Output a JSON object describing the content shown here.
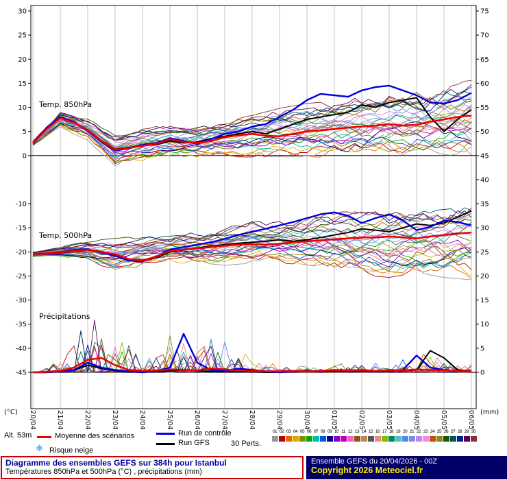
{
  "chart_data": {
    "type": "line",
    "title": "Diagramme des ensembles GEFS sur 384h pour Istanbul",
    "subtitle": "Températures 850hPa et 500hPa (°C) , précipitations (mm)",
    "x": {
      "dates": [
        "20/04",
        "21/04",
        "22/04",
        "23/04",
        "24/04",
        "25/04",
        "26/04",
        "27/04",
        "28/04",
        "29/04",
        "30/04",
        "01/05",
        "02/05",
        "03/05",
        "04/05",
        "05/05",
        "06/05"
      ],
      "hours_step_between_points": 12,
      "total_hours": 384
    },
    "left_axis": {
      "unit": "(°C)",
      "ticks": [
        30,
        25,
        20,
        15,
        10,
        5,
        0,
        -10,
        -15,
        -20,
        -25,
        -30,
        -35,
        -40,
        -45
      ]
    },
    "right_axis": {
      "unit": "(mm)",
      "ticks": [
        75,
        70,
        65,
        60,
        55,
        50,
        45,
        40,
        35,
        30,
        25,
        20,
        15,
        10,
        5,
        0
      ]
    },
    "series_styles": {
      "mean": {
        "label": "Moyenne des scénarios",
        "color": "#ee0000"
      },
      "control": {
        "label": "Run de contrôle",
        "color": "#0000dd"
      },
      "gfs": {
        "label": "Run GFS",
        "color": "#000000"
      }
    },
    "panels": [
      {
        "id": "t850",
        "label": "Temp. 850hPa",
        "unit": "°C",
        "mean": [
          2.5,
          5.5,
          7.8,
          6.8,
          5.2,
          3.0,
          1.2,
          1.6,
          2.0,
          2.4,
          3.4,
          2.8,
          2.6,
          3.0,
          3.8,
          4.2,
          4.5,
          4.1,
          4.0,
          4.5,
          5.0,
          5.2,
          5.5,
          5.8,
          6.0,
          6.2,
          6.5,
          6.2,
          6.4,
          7.0,
          7.5,
          8.0,
          8.3
        ],
        "control": [
          2.5,
          5.8,
          8.0,
          7.0,
          5.0,
          2.8,
          1.0,
          1.5,
          2.2,
          2.6,
          3.6,
          3.0,
          2.4,
          3.4,
          4.5,
          5.0,
          6.0,
          6.5,
          8.0,
          9.5,
          11.5,
          12.8,
          12.5,
          12.2,
          13.5,
          14.2,
          14.5,
          13.5,
          12.5,
          11.0,
          10.8,
          11.5,
          13.0
        ],
        "gfs": [
          2.5,
          5.6,
          7.8,
          6.9,
          5.3,
          3.1,
          1.3,
          1.7,
          2.1,
          2.2,
          3.0,
          2.6,
          2.8,
          3.5,
          4.0,
          4.5,
          5.0,
          4.5,
          5.5,
          6.5,
          7.5,
          8.0,
          8.5,
          9.0,
          10.5,
          10.0,
          11.0,
          11.5,
          12.0,
          8.0,
          5.0,
          7.5,
          9.5
        ],
        "envelope_low_daily": [
          2.0,
          6.0,
          3.5,
          -2.0,
          -1.0,
          0.0,
          -0.5,
          0.0,
          0.0,
          0.0,
          0.0,
          0.0,
          -0.5,
          0.0,
          0.0,
          0.5,
          0.0
        ],
        "envelope_high_daily": [
          3.0,
          9.0,
          7.5,
          4.0,
          5.5,
          6.0,
          6.5,
          7.0,
          8.0,
          9.5,
          10.5,
          11.0,
          12.0,
          13.0,
          13.0,
          14.0,
          15.5
        ]
      },
      {
        "id": "t500",
        "label": "Temp. 500hPa",
        "unit": "°C",
        "mean": [
          -20.5,
          -20.3,
          -20.0,
          -19.8,
          -19.5,
          -20.0,
          -20.5,
          -21.5,
          -21.8,
          -21.0,
          -19.8,
          -19.5,
          -19.3,
          -19.0,
          -18.7,
          -18.5,
          -18.4,
          -18.5,
          -18.3,
          -18.0,
          -17.8,
          -17.6,
          -17.4,
          -17.2,
          -17.0,
          -17.0,
          -16.8,
          -17.0,
          -17.2,
          -16.8,
          -16.5,
          -16.2,
          -16.0
        ],
        "control": [
          -20.5,
          -20.3,
          -20.0,
          -19.6,
          -19.4,
          -20.2,
          -20.8,
          -21.8,
          -22.0,
          -21.0,
          -19.5,
          -19.0,
          -18.5,
          -18.0,
          -17.3,
          -16.5,
          -15.8,
          -15.2,
          -14.5,
          -13.8,
          -13.0,
          -12.2,
          -11.8,
          -12.5,
          -14.0,
          -13.0,
          -12.2,
          -13.5,
          -15.5,
          -14.8,
          -13.5,
          -13.8,
          -14.5
        ],
        "gfs": [
          -20.5,
          -20.4,
          -20.1,
          -19.9,
          -19.6,
          -20.1,
          -20.6,
          -21.6,
          -21.9,
          -21.2,
          -20.0,
          -19.6,
          -19.2,
          -18.8,
          -18.5,
          -18.2,
          -18.0,
          -17.8,
          -17.5,
          -17.8,
          -17.5,
          -17.0,
          -16.5,
          -16.0,
          -15.2,
          -15.5,
          -15.8,
          -15.0,
          -14.2,
          -14.5,
          -14.0,
          -12.8,
          -11.5
        ],
        "envelope_low_daily": [
          -21.0,
          -21.0,
          -22.0,
          -24.5,
          -23.0,
          -22.0,
          -23.0,
          -22.5,
          -22.0,
          -22.0,
          -22.5,
          -23.0,
          -24.5,
          -25.0,
          -24.0,
          -25.0,
          -25.5
        ],
        "envelope_high_daily": [
          -20.0,
          -19.0,
          -18.0,
          -17.5,
          -17.0,
          -16.5,
          -16.0,
          -15.0,
          -14.0,
          -13.5,
          -13.0,
          -12.0,
          -12.0,
          -11.5,
          -12.0,
          -11.5,
          -10.5
        ]
      },
      {
        "id": "precip",
        "label": "Précipitations",
        "unit": "mm",
        "mean": [
          0,
          0.1,
          0.3,
          1.0,
          2.6,
          3.0,
          1.5,
          0.5,
          0.3,
          0.4,
          0.6,
          0.5,
          0.4,
          0.8,
          0.6,
          0.4,
          0.3,
          0.2,
          0.2,
          0.3,
          0.2,
          0.3,
          0.5,
          0.4,
          0.5,
          0.3,
          0.5,
          0.4,
          0.6,
          0.5,
          0.4,
          0.3,
          0.2
        ],
        "control": [
          0,
          0,
          0.2,
          0.5,
          2.0,
          1.0,
          0.5,
          0.2,
          0,
          0.3,
          1.0,
          8.0,
          2.0,
          0.5,
          0.3,
          0.8,
          0.5,
          0.2,
          0,
          0.2,
          0.3,
          0.2,
          0.5,
          0.3,
          0.4,
          0.2,
          0.3,
          0.5,
          3.5,
          1.0,
          0.5,
          0.3,
          0.2
        ],
        "gfs": [
          0,
          0,
          0.1,
          0.4,
          1.5,
          0.8,
          0.3,
          0.1,
          0,
          0.2,
          0.3,
          0.5,
          0.3,
          0.2,
          0.1,
          0.2,
          0.1,
          0,
          0,
          0.1,
          0.2,
          0.1,
          0.3,
          0.2,
          0.3,
          0.2,
          0.4,
          0.3,
          0.5,
          4.5,
          3.0,
          0.5,
          0.3
        ],
        "envelope_low_daily": [
          0,
          0,
          0,
          0,
          0,
          0,
          0,
          0,
          0,
          0,
          0,
          0,
          0,
          0,
          0,
          0,
          0
        ],
        "envelope_high_daily": [
          0.5,
          3.0,
          13.0,
          10.0,
          3.0,
          9.0,
          8.0,
          12.0,
          3.0,
          2.0,
          1.5,
          2.0,
          3.0,
          2.0,
          5.0,
          4.0,
          3.0
        ]
      }
    ],
    "members": {
      "count": 30,
      "label": "30 Perts.",
      "numbers": [
        "01",
        "02",
        "03",
        "04",
        "05",
        "06",
        "07",
        "08",
        "09",
        "10",
        "11",
        "12",
        "13",
        "14",
        "15",
        "16",
        "17",
        "18",
        "19",
        "20",
        "21",
        "22",
        "23",
        "24",
        "25",
        "26",
        "27",
        "28",
        "29",
        "30"
      ],
      "colors": [
        "#999999",
        "#bb0000",
        "#ee6600",
        "#ddaa00",
        "#888800",
        "#00aa00",
        "#00bbbb",
        "#0055dd",
        "#000088",
        "#8800bb",
        "#bb00bb",
        "#ee66bb",
        "#885522",
        "#bb8855",
        "#555555",
        "#ee8888",
        "#88bb00",
        "#008855",
        "#55bbbb",
        "#5588ee",
        "#8888ee",
        "#bb88ee",
        "#ee88ee",
        "#bb5500",
        "#888822",
        "#225500",
        "#005555",
        "#002288",
        "#550055",
        "#883333"
      ]
    }
  },
  "legend": {
    "alt_label": "Alt. 53m",
    "mean_label": "Moyenne des scénarios",
    "control_label": "Run de contrôle",
    "gfs_label": "Run GFS",
    "perts_label": "30 Perts.",
    "snow_icon": "❄",
    "snow_label": "Risque neige"
  },
  "footer": {
    "title": "Diagramme des ensembles GEFS sur 384h pour Istanbul",
    "subtitle": "Températures 850hPa et 500hPa (°C) , précipitations (mm)",
    "run_info": "Ensemble GEFS du 20/04/2026 - 00Z",
    "copyright": "Copyright 2026 Meteociel.fr"
  }
}
